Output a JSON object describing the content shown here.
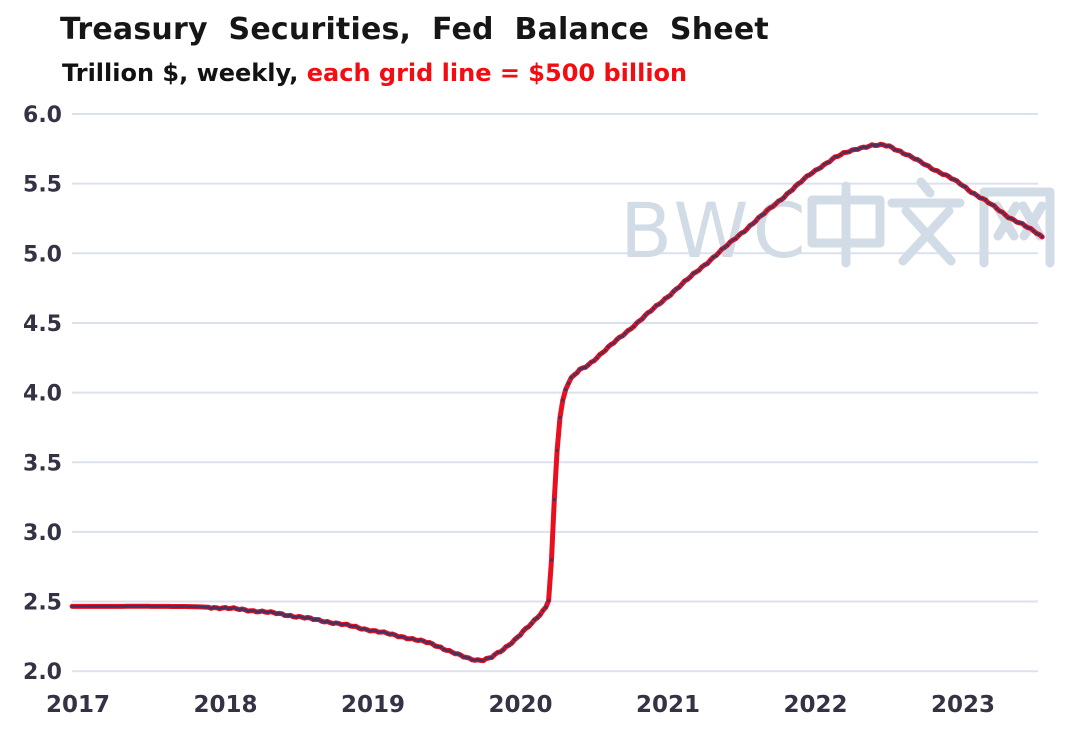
{
  "header": {
    "title": "Treasury Securities, Fed Balance Sheet",
    "subtitle_plain": "Trillion $, weekly,",
    "subtitle_highlight": "each grid line = $500 billion"
  },
  "watermark": {
    "text": "BWC中文网",
    "latin": "BWC",
    "cjk": "中文网"
  },
  "colors": {
    "line": "#e8101f",
    "marker": "#3b3464",
    "grid": "#dce1ee",
    "axis_text": "#333345",
    "title_text": "#161616",
    "subtitle_highlight": "#f20d12",
    "watermark": "#d2dce6",
    "background": "#ffffff"
  },
  "chart_data": {
    "type": "line",
    "title": "Treasury Securities, Fed Balance Sheet",
    "ylabel": "Trillion $",
    "frequency": "weekly",
    "grid_note": "each grid line = $500 billion",
    "grid": true,
    "legend": "none",
    "ylim": [
      2.0,
      6.0
    ],
    "xlim": [
      2016.96,
      2023.55
    ],
    "y_ticks": [
      2.0,
      2.5,
      3.0,
      3.5,
      4.0,
      4.5,
      5.0,
      5.5,
      6.0
    ],
    "x_ticks": [
      2017,
      2018,
      2019,
      2020,
      2021,
      2022,
      2023
    ],
    "series": [
      {
        "name": "Treasury Securities",
        "x": [
          2016.96,
          2017.2,
          2017.4,
          2017.6,
          2017.75,
          2017.85,
          2017.95,
          2018.04,
          2018.13,
          2018.21,
          2018.29,
          2018.38,
          2018.46,
          2018.54,
          2018.63,
          2018.71,
          2018.79,
          2018.88,
          2018.96,
          2019.04,
          2019.13,
          2019.21,
          2019.29,
          2019.38,
          2019.46,
          2019.54,
          2019.6,
          2019.65,
          2019.7,
          2019.75,
          2019.8,
          2019.88,
          2019.96,
          2020.02,
          2020.08,
          2020.13,
          2020.17,
          2020.19,
          2020.21,
          2020.23,
          2020.25,
          2020.27,
          2020.29,
          2020.31,
          2020.35,
          2020.4,
          2020.46,
          2020.54,
          2020.63,
          2020.71,
          2020.79,
          2020.88,
          2020.96,
          2021.04,
          2021.13,
          2021.21,
          2021.29,
          2021.38,
          2021.46,
          2021.54,
          2021.63,
          2021.71,
          2021.79,
          2021.88,
          2021.96,
          2022.04,
          2022.13,
          2022.21,
          2022.29,
          2022.38,
          2022.46,
          2022.5,
          2022.57,
          2022.65,
          2022.73,
          2022.81,
          2022.9,
          2022.98,
          2023.06,
          2023.15,
          2023.23,
          2023.31,
          2023.4,
          2023.46,
          2023.5,
          2023.54
        ],
        "values": [
          2.465,
          2.465,
          2.466,
          2.465,
          2.464,
          2.461,
          2.456,
          2.449,
          2.441,
          2.432,
          2.422,
          2.41,
          2.396,
          2.382,
          2.367,
          2.352,
          2.336,
          2.318,
          2.3,
          2.282,
          2.263,
          2.245,
          2.225,
          2.203,
          2.172,
          2.135,
          2.108,
          2.09,
          2.081,
          2.083,
          2.098,
          2.15,
          2.225,
          2.29,
          2.345,
          2.4,
          2.455,
          2.5,
          2.8,
          3.25,
          3.62,
          3.85,
          3.96,
          4.04,
          4.11,
          4.16,
          4.2,
          4.273,
          4.355,
          4.428,
          4.5,
          4.582,
          4.655,
          4.728,
          4.81,
          4.883,
          4.955,
          5.037,
          5.11,
          5.183,
          5.265,
          5.338,
          5.41,
          5.492,
          5.565,
          5.625,
          5.685,
          5.725,
          5.755,
          5.772,
          5.776,
          5.77,
          5.735,
          5.69,
          5.645,
          5.6,
          5.55,
          5.5,
          5.44,
          5.38,
          5.32,
          5.26,
          5.21,
          5.17,
          5.145,
          5.115
        ]
      }
    ]
  }
}
